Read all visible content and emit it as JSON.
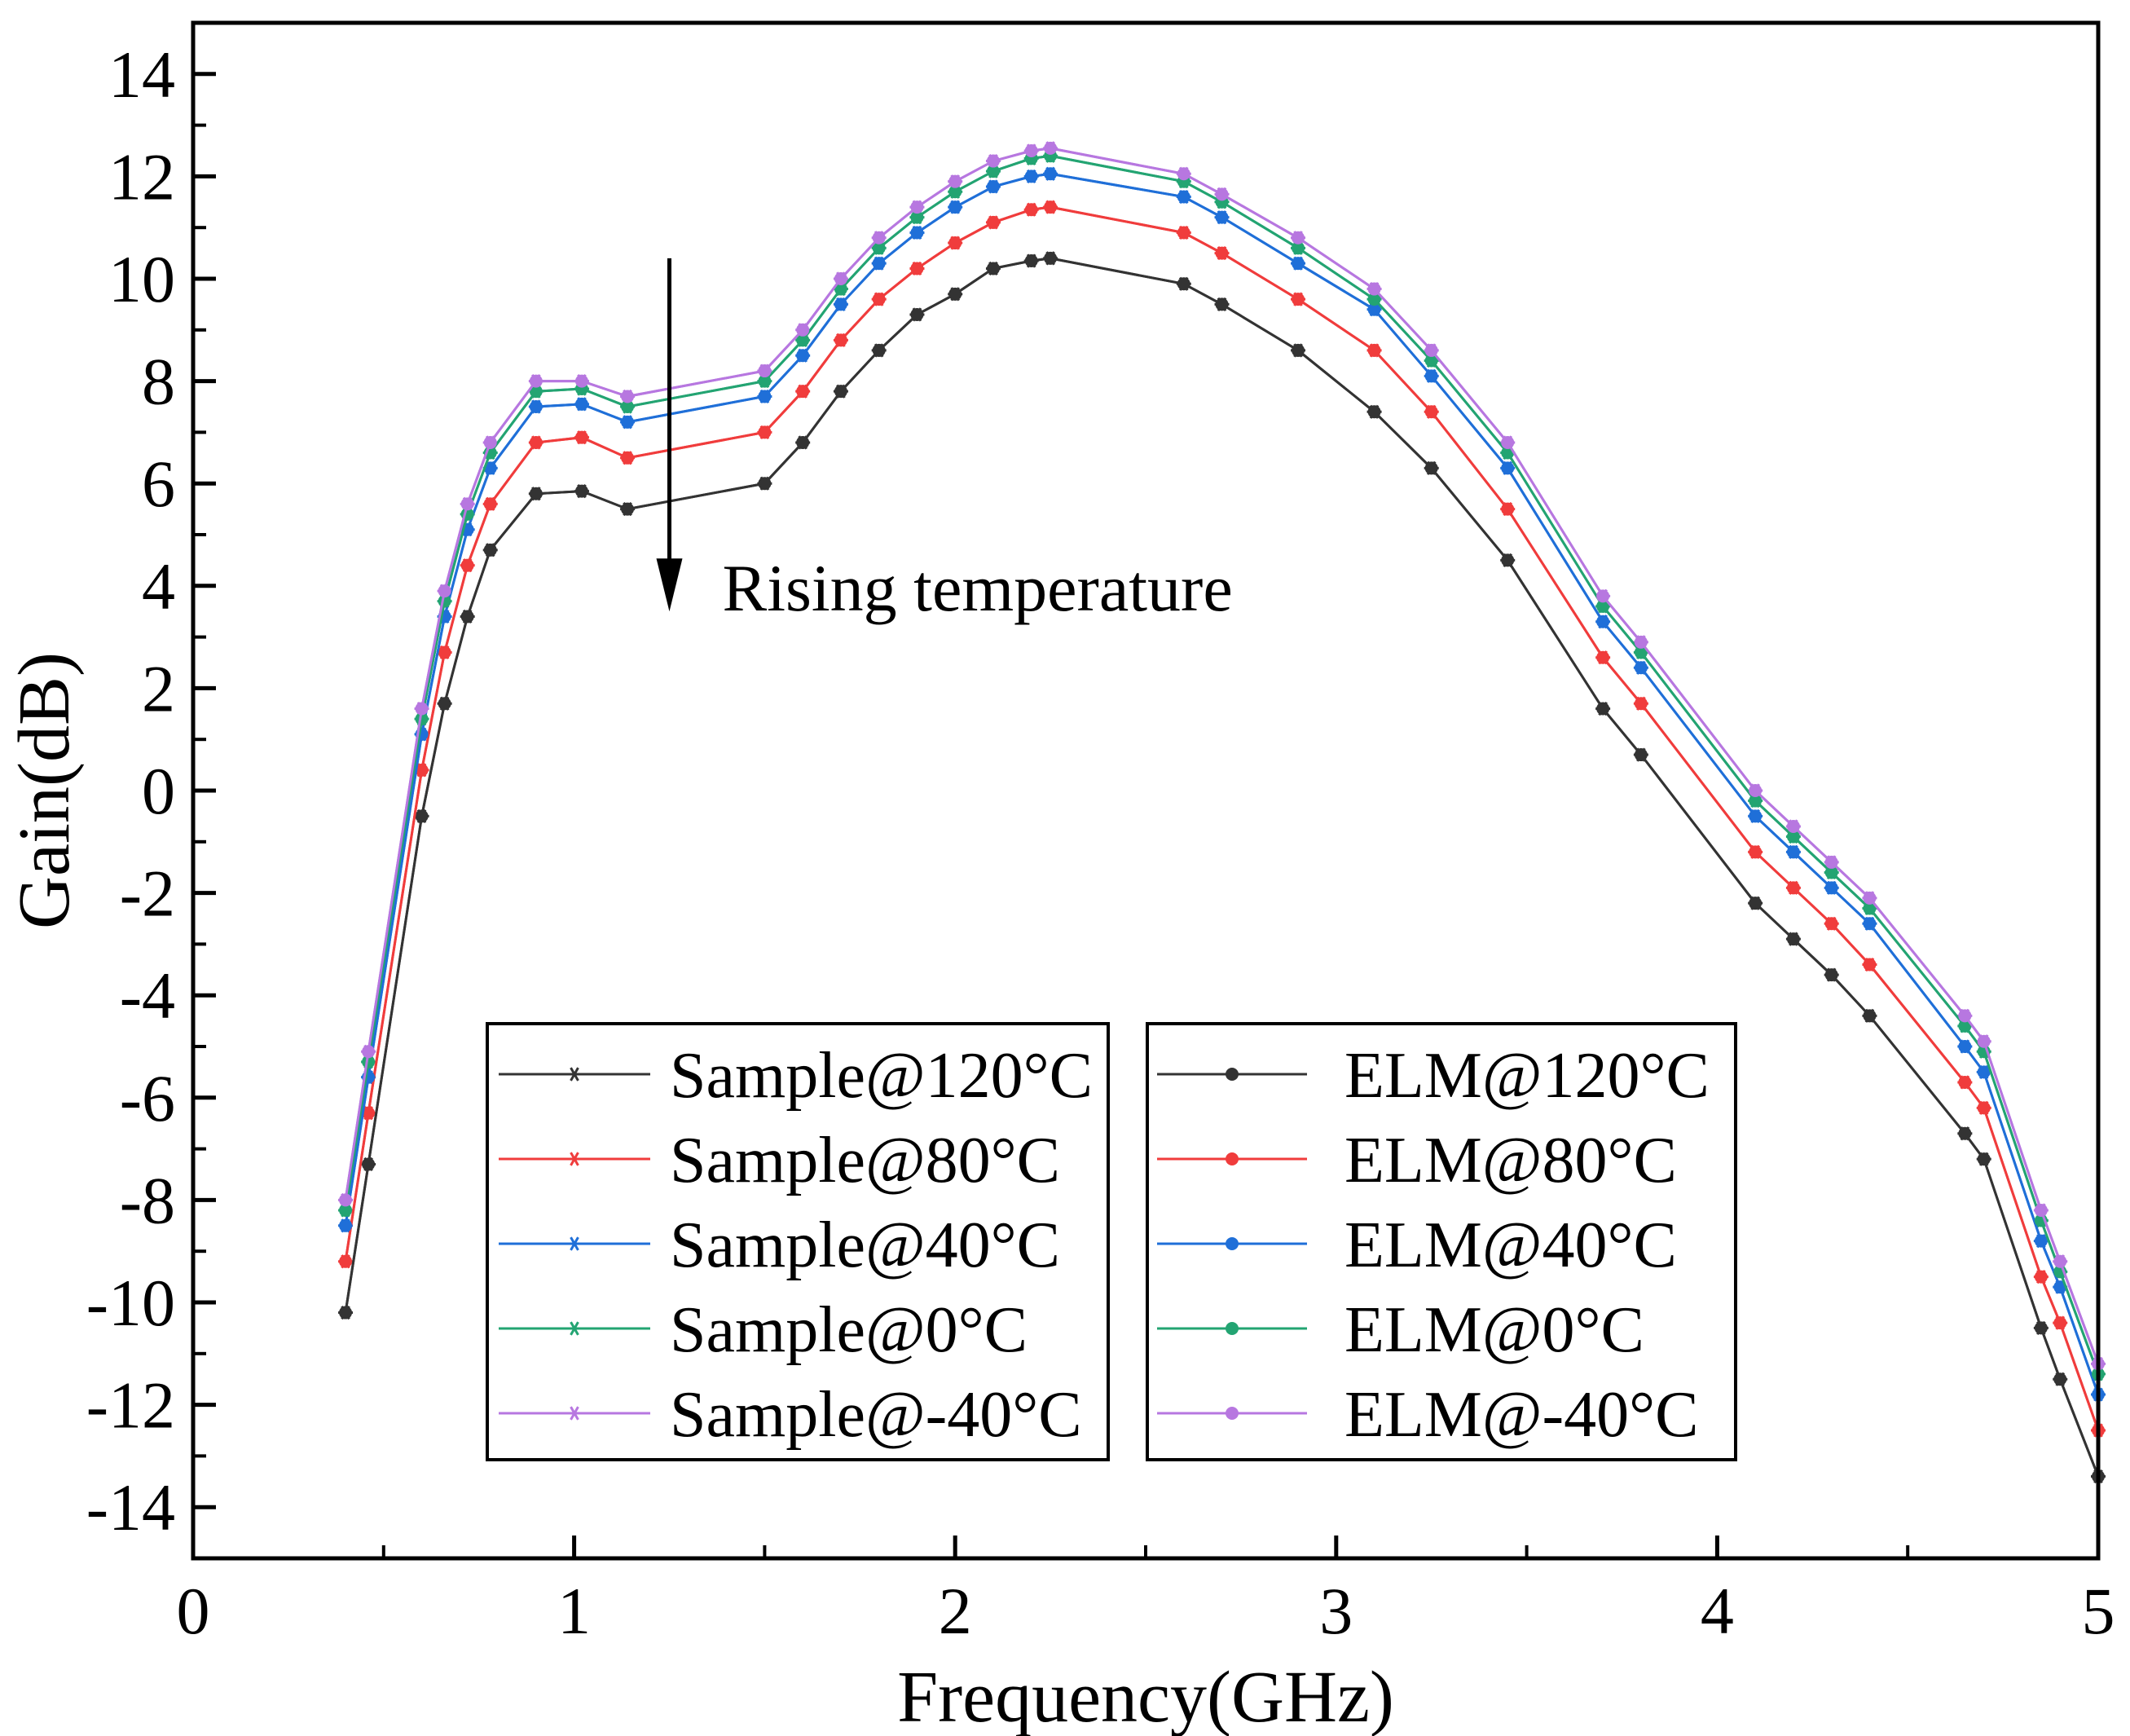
{
  "chart_data": {
    "type": "line",
    "title": "",
    "xlabel": "Frequency(GHz)",
    "ylabel": "Gain(dB)",
    "xlim": [
      0,
      5
    ],
    "ylim": [
      -15,
      15
    ],
    "x_ticks": [
      0,
      1,
      2,
      3,
      4,
      5
    ],
    "y_ticks": [
      -14,
      -12,
      -10,
      -8,
      -6,
      -4,
      -2,
      0,
      2,
      4,
      6,
      8,
      10,
      12,
      14
    ],
    "grid": false,
    "annotation": {
      "text": "Rising temperature",
      "arrow_x": 1.25,
      "arrow_from": 10.4,
      "arrow_to": 3.5
    },
    "x": [
      0.4,
      0.46,
      0.6,
      0.66,
      0.72,
      0.78,
      0.9,
      1.02,
      1.14,
      1.5,
      1.6,
      1.7,
      1.8,
      1.9,
      2.0,
      2.1,
      2.2,
      2.25,
      2.6,
      2.7,
      2.9,
      3.1,
      3.25,
      3.45,
      3.7,
      3.8,
      4.1,
      4.2,
      4.3,
      4.4,
      4.65,
      4.7,
      4.85,
      4.9,
      5.0
    ],
    "series": [
      {
        "name": "Sample@120°C",
        "kind": "sample",
        "color": "#333333",
        "values": [
          -10.2,
          -7.3,
          -0.5,
          1.7,
          3.4,
          4.7,
          5.8,
          5.85,
          5.5,
          6.0,
          6.8,
          7.8,
          8.6,
          9.3,
          9.7,
          10.2,
          10.35,
          10.4,
          9.9,
          9.5,
          8.6,
          7.4,
          6.3,
          4.5,
          1.6,
          0.7,
          -2.2,
          -2.9,
          -3.6,
          -4.4,
          -6.7,
          -7.2,
          -10.5,
          -11.5,
          -13.4
        ]
      },
      {
        "name": "Sample@80°C",
        "kind": "sample",
        "color": "#f03c3c",
        "values": [
          -9.2,
          -6.3,
          0.4,
          2.7,
          4.4,
          5.6,
          6.8,
          6.9,
          6.5,
          7.0,
          7.8,
          8.8,
          9.6,
          10.2,
          10.7,
          11.1,
          11.35,
          11.4,
          10.9,
          10.5,
          9.6,
          8.6,
          7.4,
          5.5,
          2.6,
          1.7,
          -1.2,
          -1.9,
          -2.6,
          -3.4,
          -5.7,
          -6.2,
          -9.5,
          -10.4,
          -12.5
        ]
      },
      {
        "name": "Sample@40°C",
        "kind": "sample",
        "color": "#1f6fd8",
        "values": [
          -8.5,
          -5.6,
          1.1,
          3.4,
          5.1,
          6.3,
          7.5,
          7.55,
          7.2,
          7.7,
          8.5,
          9.5,
          10.3,
          10.9,
          11.4,
          11.8,
          12.0,
          12.05,
          11.6,
          11.2,
          10.3,
          9.4,
          8.1,
          6.3,
          3.3,
          2.4,
          -0.5,
          -1.2,
          -1.9,
          -2.6,
          -5.0,
          -5.5,
          -8.8,
          -9.7,
          -11.8
        ]
      },
      {
        "name": "Sample@0°C",
        "kind": "sample",
        "color": "#23a472",
        "values": [
          -8.2,
          -5.3,
          1.4,
          3.7,
          5.4,
          6.6,
          7.8,
          7.85,
          7.5,
          8.0,
          8.8,
          9.8,
          10.6,
          11.2,
          11.7,
          12.1,
          12.35,
          12.4,
          11.9,
          11.5,
          10.6,
          9.6,
          8.4,
          6.6,
          3.6,
          2.7,
          -0.2,
          -0.9,
          -1.6,
          -2.3,
          -4.6,
          -5.1,
          -8.4,
          -9.4,
          -11.4
        ]
      },
      {
        "name": "Sample@-40°C",
        "kind": "sample",
        "color": "#b777e0",
        "values": [
          -8.0,
          -5.1,
          1.6,
          3.9,
          5.6,
          6.8,
          8.0,
          8.0,
          7.7,
          8.2,
          9.0,
          10.0,
          10.8,
          11.4,
          11.9,
          12.3,
          12.5,
          12.55,
          12.05,
          11.65,
          10.8,
          9.8,
          8.6,
          6.8,
          3.8,
          2.9,
          0.0,
          -0.7,
          -1.4,
          -2.1,
          -4.4,
          -4.9,
          -8.2,
          -9.2,
          -11.2
        ]
      },
      {
        "name": "ELM@120°C",
        "kind": "elm",
        "color": "#333333",
        "values": [
          -10.2,
          -7.3,
          -0.5,
          1.7,
          3.4,
          4.7,
          5.8,
          5.85,
          5.5,
          6.0,
          6.8,
          7.8,
          8.6,
          9.3,
          9.7,
          10.2,
          10.35,
          10.4,
          9.9,
          9.5,
          8.6,
          7.4,
          6.3,
          4.5,
          1.6,
          0.7,
          -2.2,
          -2.9,
          -3.6,
          -4.4,
          -6.7,
          -7.2,
          -10.5,
          -11.5,
          -13.4
        ]
      },
      {
        "name": "ELM@80°C",
        "kind": "elm",
        "color": "#f03c3c",
        "values": [
          -9.2,
          -6.3,
          0.4,
          2.7,
          4.4,
          5.6,
          6.8,
          6.9,
          6.5,
          7.0,
          7.8,
          8.8,
          9.6,
          10.2,
          10.7,
          11.1,
          11.35,
          11.4,
          10.9,
          10.5,
          9.6,
          8.6,
          7.4,
          5.5,
          2.6,
          1.7,
          -1.2,
          -1.9,
          -2.6,
          -3.4,
          -5.7,
          -6.2,
          -9.5,
          -10.4,
          -12.5
        ]
      },
      {
        "name": "ELM@40°C",
        "kind": "elm",
        "color": "#1f6fd8",
        "values": [
          -8.5,
          -5.6,
          1.1,
          3.4,
          5.1,
          6.3,
          7.5,
          7.55,
          7.2,
          7.7,
          8.5,
          9.5,
          10.3,
          10.9,
          11.4,
          11.8,
          12.0,
          12.05,
          11.6,
          11.2,
          10.3,
          9.4,
          8.1,
          6.3,
          3.3,
          2.4,
          -0.5,
          -1.2,
          -1.9,
          -2.6,
          -5.0,
          -5.5,
          -8.8,
          -9.7,
          -11.8
        ]
      },
      {
        "name": "ELM@0°C",
        "kind": "elm",
        "color": "#23a472",
        "values": [
          -8.2,
          -5.3,
          1.4,
          3.7,
          5.4,
          6.6,
          7.8,
          7.85,
          7.5,
          8.0,
          8.8,
          9.8,
          10.6,
          11.2,
          11.7,
          12.1,
          12.35,
          12.4,
          11.9,
          11.5,
          10.6,
          9.6,
          8.4,
          6.6,
          3.6,
          2.7,
          -0.2,
          -0.9,
          -1.6,
          -2.3,
          -4.6,
          -5.1,
          -8.4,
          -9.4,
          -11.4
        ]
      },
      {
        "name": "ELM@-40°C",
        "kind": "elm",
        "color": "#b777e0",
        "values": [
          -8.0,
          -5.1,
          1.6,
          3.9,
          5.6,
          6.8,
          8.0,
          8.0,
          7.7,
          8.2,
          9.0,
          10.0,
          10.8,
          11.4,
          11.9,
          12.3,
          12.5,
          12.55,
          12.05,
          11.65,
          10.8,
          9.8,
          8.6,
          6.8,
          3.8,
          2.9,
          0.0,
          -0.7,
          -1.4,
          -2.1,
          -4.4,
          -4.9,
          -8.2,
          -9.2,
          -11.2
        ]
      }
    ],
    "legend": {
      "placement": "bottom-center",
      "columns": [
        [
          "Sample@120°C",
          "Sample@80°C",
          "Sample@40°C",
          "Sample@0°C",
          "Sample@-40°C"
        ],
        [
          "ELM@120°C",
          "ELM@80°C",
          "ELM@40°C",
          "ELM@0°C",
          "ELM@-40°C"
        ]
      ]
    }
  }
}
